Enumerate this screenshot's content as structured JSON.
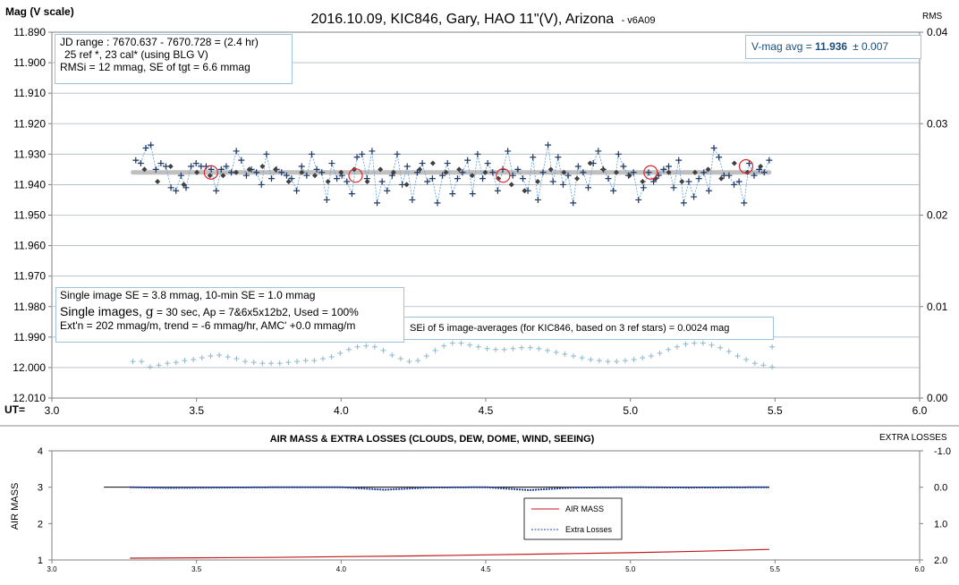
{
  "chart_data": [
    {
      "type": "scatter",
      "title": "2016.10.09, KIC846, Gary, HAO 11\"(V), Arizona",
      "version_tag": "- v6A09",
      "ylabel": "Mag (V scale)",
      "y2label": "RMS",
      "xlabel": "UT=",
      "xlim": [
        3.0,
        6.0
      ],
      "xticks": [
        "3.0",
        "3.5",
        "4.0",
        "4.5",
        "5.0",
        "5.5",
        "6.0"
      ],
      "ylim": [
        11.89,
        12.01
      ],
      "y_reversed": true,
      "yticks": [
        "11.890",
        "11.900",
        "11.910",
        "11.920",
        "11.930",
        "11.940",
        "11.950",
        "11.960",
        "11.970",
        "11.980",
        "11.990",
        "12.000",
        "12.010"
      ],
      "y2lim": [
        0.0,
        0.04
      ],
      "y2ticks": [
        "0.04",
        "0.03",
        "0.02",
        "0.01",
        "0.00"
      ],
      "grid": true,
      "info_box_top_left": [
        "JD range : 7670.637 - 7670.728 = (2.4 hr)",
        "25 ref *, 23 cal* (using BLG V)",
        "RMSi = 12 mmag, SE of tgt = 6.6 mmag"
      ],
      "vmag_label": "V-mag avg = ",
      "vmag_value": "11.936",
      "vmag_err": "± 0.007",
      "info_box_bottom_left": [
        "Single image SE = 3.8 mmag, 10-min SE = 1.0 mmag",
        "Single images, ",
        "g",
        " = 30 sec, Ap = 7&6x5x12b2, Used = 100%",
        "Ext'n = 202 mmag/m, trend = -6 mmag/hr, AMC' +0.0 mmag/m"
      ],
      "sei_note": "SEi of 5 image-averages (for KIC846, based on 3 ref stars) = 0.0024 mag",
      "mean_mag": 11.936,
      "x_start": 3.29,
      "x_end": 5.48,
      "single_images": [
        11.932,
        11.933,
        11.928,
        11.927,
        11.935,
        11.933,
        11.934,
        11.941,
        11.942,
        11.937,
        11.941,
        11.934,
        11.933,
        11.934,
        11.934,
        11.935,
        11.942,
        11.935,
        11.934,
        11.936,
        11.929,
        11.932,
        11.937,
        11.935,
        11.936,
        11.94,
        11.93,
        11.938,
        11.935,
        11.936,
        11.937,
        11.938,
        11.942,
        11.934,
        11.937,
        11.93,
        11.935,
        11.936,
        11.945,
        11.933,
        11.938,
        11.937,
        11.939,
        11.943,
        11.931,
        11.93,
        11.938,
        11.929,
        11.946,
        11.939,
        11.942,
        11.937,
        11.93,
        11.94,
        11.934,
        11.945,
        11.936,
        11.933,
        11.939,
        11.938,
        11.946,
        11.937,
        11.933,
        11.943,
        11.938,
        11.936,
        11.932,
        11.943,
        11.93,
        11.938,
        11.933,
        11.936,
        11.942,
        11.935,
        11.929,
        11.937,
        11.935,
        11.938,
        11.942,
        11.931,
        11.945,
        11.936,
        11.927,
        11.939,
        11.931,
        11.94,
        11.937,
        11.946,
        11.934,
        11.936,
        11.941,
        11.933,
        11.929,
        11.935,
        11.938,
        11.942,
        11.93,
        11.934,
        11.937,
        11.936,
        11.945,
        11.941,
        11.936,
        11.939,
        11.937,
        11.935,
        11.934,
        11.941,
        11.932,
        11.946,
        11.939,
        11.944,
        11.938,
        11.936,
        11.942,
        11.928,
        11.931,
        11.937,
        11.937,
        11.94,
        11.939,
        11.946,
        11.933,
        11.937,
        11.935,
        11.936,
        11.932
      ],
      "image_averages": [
        11.935,
        11.939,
        11.934,
        11.94,
        11.936,
        11.937,
        11.937,
        11.936,
        11.935,
        11.934,
        11.935,
        11.939,
        11.936,
        11.937,
        11.939,
        11.936,
        11.935,
        11.939,
        11.935,
        11.936,
        11.94,
        11.935,
        11.933,
        11.936,
        11.935,
        11.937,
        11.936,
        11.938,
        11.94,
        11.942,
        11.939,
        11.935,
        11.936,
        11.938,
        11.933,
        11.935,
        11.936,
        11.937,
        11.939,
        11.938,
        11.936,
        11.939,
        11.936,
        11.935,
        11.938,
        11.933,
        11.936,
        11.934
      ],
      "ten_min_circles_x": [
        3.55,
        4.05,
        4.56,
        5.07,
        5.4
      ],
      "ten_min_circles_y": [
        11.936,
        11.937,
        11.937,
        11.936,
        11.934
      ],
      "rms_series_x_start": 3.28,
      "rms_series_x_end": 5.49,
      "rms_series": [
        0.004,
        0.004,
        0.0034,
        0.0036,
        0.0038,
        0.0039,
        0.0041,
        0.0042,
        0.0044,
        0.0046,
        0.0047,
        0.0045,
        0.0043,
        0.004,
        0.0039,
        0.0038,
        0.0038,
        0.0038,
        0.0039,
        0.004,
        0.0041,
        0.0041,
        0.0043,
        0.0045,
        0.0049,
        0.0053,
        0.0056,
        0.0057,
        0.0056,
        0.0052,
        0.0047,
        0.0043,
        0.004,
        0.0041,
        0.0046,
        0.0052,
        0.0057,
        0.006,
        0.006,
        0.0058,
        0.0056,
        0.0054,
        0.0053,
        0.0053,
        0.0054,
        0.0055,
        0.0055,
        0.0054,
        0.0052,
        0.005,
        0.0048,
        0.0046,
        0.0044,
        0.0042,
        0.0041,
        0.004,
        0.004,
        0.0041,
        0.0042,
        0.0044,
        0.0046,
        0.0049,
        0.0053,
        0.0056,
        0.0059,
        0.006,
        0.006,
        0.0058,
        0.0055,
        0.0051,
        0.0046,
        0.0042,
        0.0038,
        0.0036,
        0.0034
      ],
      "rms_series_end_points": [
        [
          5.49,
          0.0056
        ]
      ]
    },
    {
      "type": "line",
      "title": "AIR MASS & EXTRA LOSSES (CLOUDS, DEW, DOME, WIND, SEEING)",
      "ylabel": "AIR MASS",
      "y2label": "EXTRA LOSSES",
      "xlim": [
        3.0,
        6.0
      ],
      "xticks": [
        "3.0",
        "3.5",
        "4.0",
        "4.5",
        "5.0",
        "5.5",
        "6.0"
      ],
      "ylim": [
        1,
        4
      ],
      "yticks": [
        "4",
        "3",
        "2",
        "1"
      ],
      "y2ticks": [
        "-1.0",
        "0.0",
        "1.0",
        "2.0"
      ],
      "legend_position": "center-right",
      "series": [
        {
          "name": "AIR MASS",
          "color": "#c0191c",
          "x": [
            3.27,
            3.5,
            3.75,
            4.0,
            4.25,
            4.5,
            4.75,
            5.0,
            5.25,
            5.48
          ],
          "values": [
            1.05,
            1.06,
            1.07,
            1.09,
            1.11,
            1.14,
            1.17,
            1.2,
            1.24,
            1.29
          ]
        },
        {
          "name": "Extra Losses",
          "color": "#1f3fa0",
          "x": [
            3.27,
            3.4,
            3.6,
            3.8,
            4.0,
            4.15,
            4.3,
            4.5,
            4.65,
            4.8,
            5.0,
            5.2,
            5.48
          ],
          "values": [
            0.0,
            0.02,
            0.01,
            0.0,
            0.0,
            0.07,
            0.01,
            0.0,
            0.08,
            0.01,
            0.0,
            0.01,
            0.0
          ]
        }
      ],
      "reference_line": {
        "value": 3.0,
        "from_x": 3.18,
        "to_x": 5.48
      }
    }
  ],
  "colors": {
    "grid": "#aeb9c4",
    "axis": "#808080",
    "plus_marker": "#1f3864",
    "dash_line": "#5b9bd5",
    "mean_band": "#bfbfbf",
    "circle": "#d9262b",
    "avg_marker": "#404040",
    "rms_marker": "#8db8c8",
    "vmag_text": "#1f4e79",
    "airmass_line": "#c0191c",
    "losses_line": "#1f3fa0"
  }
}
